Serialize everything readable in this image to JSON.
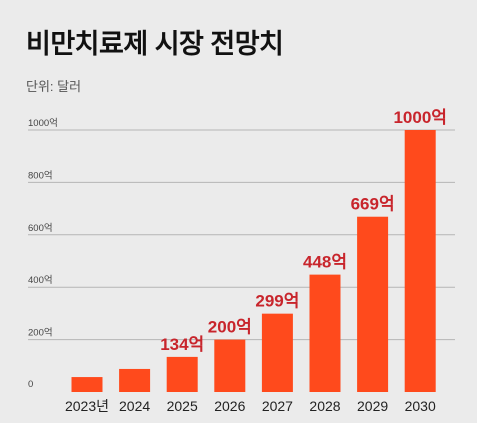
{
  "title": "비만치료제 시장 전망치",
  "unit_label": "단위: 달러",
  "chart_data": {
    "type": "bar",
    "title": "비만치료제 시장 전망치",
    "ylabel": "",
    "xlabel": "",
    "categories": [
      "2023년",
      "2024",
      "2025",
      "2026",
      "2027",
      "2028",
      "2029",
      "2030"
    ],
    "values": [
      57,
      88,
      134,
      200,
      299,
      448,
      669,
      1000
    ],
    "data_labels": [
      "",
      "",
      "134억",
      "200억",
      "299억",
      "448억",
      "669억",
      "1000억"
    ],
    "ylim": [
      0,
      1000
    ],
    "yticks": [
      0,
      200,
      400,
      600,
      800,
      1000
    ],
    "ytick_labels": [
      "0",
      "200억",
      "400억",
      "600억",
      "800억",
      "1000억"
    ],
    "grid": true,
    "legend": "none",
    "bar_color": "#ff4a1c",
    "label_color": "#c8252c",
    "grid_color": "#b5b5b5"
  }
}
